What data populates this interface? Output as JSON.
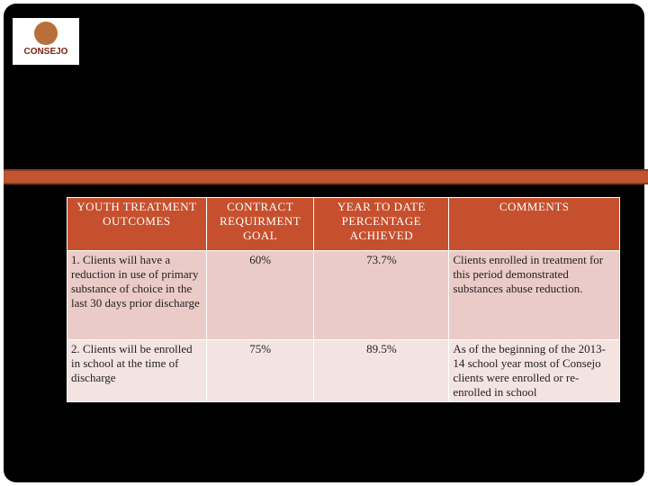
{
  "logo": {
    "text": "CONSEJO"
  },
  "table": {
    "header": [
      "YOUTH TREATMENT OUTCOMES",
      "CONTRACT REQUIRMENT GOAL",
      "YEAR TO DATE PERCENTAGE ACHIEVED",
      "COMMENTS"
    ],
    "rows": [
      [
        "1. Clients will have a reduction in use of primary substance of choice in the last 30 days prior discharge",
        "60%",
        "73.7%",
        "Clients enrolled in treatment for this period demonstrated substances abuse reduction."
      ],
      [
        "2. Clients will be enrolled in school at the time of discharge",
        "75%",
        "89.5%",
        "As of the beginning of the 2013-14 school year most of Consejo clients were enrolled or re-enrolled in school"
      ]
    ]
  }
}
